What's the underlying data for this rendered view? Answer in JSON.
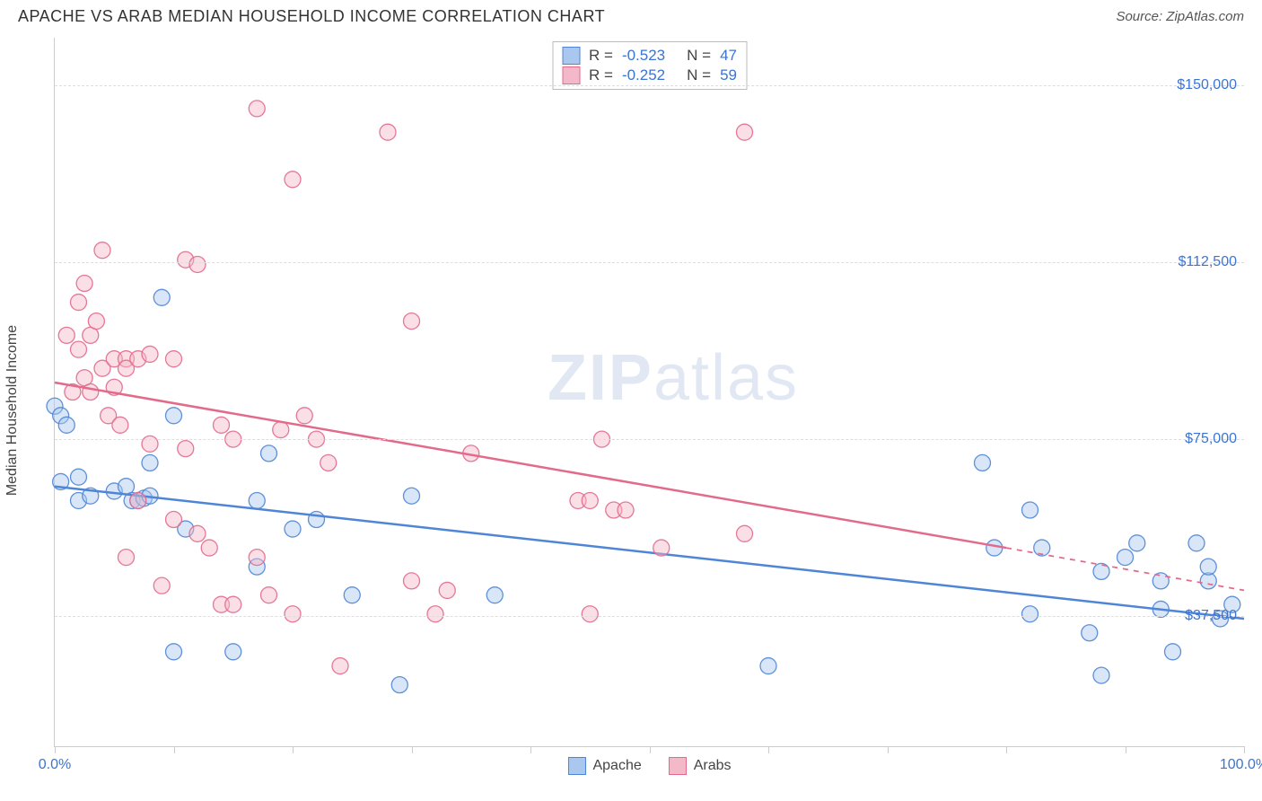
{
  "header": {
    "title": "APACHE VS ARAB MEDIAN HOUSEHOLD INCOME CORRELATION CHART",
    "source": "Source: ZipAtlas.com"
  },
  "watermark": {
    "zip": "ZIP",
    "atlas": "atlas"
  },
  "chart": {
    "type": "scatter",
    "background_color": "#ffffff",
    "grid_color": "#dddddd",
    "axis_color": "#cccccc",
    "label_color": "#444444",
    "value_color": "#3b74d4",
    "ylabel": "Median Household Income",
    "ylabel_fontsize": 16,
    "xlim": [
      0,
      100
    ],
    "ylim": [
      10000,
      160000
    ],
    "yticks": [
      {
        "v": 37500,
        "label": "$37,500"
      },
      {
        "v": 75000,
        "label": "$75,000"
      },
      {
        "v": 112500,
        "label": "$112,500"
      },
      {
        "v": 150000,
        "label": "$150,000"
      }
    ],
    "xticks": [
      0,
      10,
      20,
      30,
      40,
      50,
      60,
      70,
      80,
      90,
      100
    ],
    "xtick_labels": {
      "0": "0.0%",
      "100": "100.0%"
    },
    "marker_radius": 9,
    "marker_opacity": 0.45,
    "marker_stroke_opacity": 0.9,
    "line_width": 2.5,
    "stats_box": {
      "rows": [
        {
          "swatch_fill": "#a9c7ef",
          "swatch_border": "#4f85d6",
          "r": "-0.523",
          "n": "47"
        },
        {
          "swatch_fill": "#f4b9c8",
          "swatch_border": "#e26a8b",
          "r": "-0.252",
          "n": "59"
        }
      ],
      "r_label": "R =",
      "n_label": "N ="
    },
    "legend": [
      {
        "swatch_fill": "#a9c7ef",
        "swatch_border": "#4f85d6",
        "label": "Apache"
      },
      {
        "swatch_fill": "#f4b9c8",
        "swatch_border": "#e26a8b",
        "label": "Arabs"
      }
    ],
    "series": [
      {
        "name": "Apache",
        "fill": "#a9c7ef",
        "stroke": "#4f85d6",
        "regression": {
          "x1": 0,
          "y1": 65000,
          "x2": 100,
          "y2": 37000,
          "dash": false
        },
        "points": [
          [
            0,
            82000
          ],
          [
            0.5,
            80000
          ],
          [
            0.5,
            66000
          ],
          [
            1,
            78000
          ],
          [
            2,
            67000
          ],
          [
            2,
            62000
          ],
          [
            3,
            63000
          ],
          [
            5,
            64000
          ],
          [
            6,
            65000
          ],
          [
            6.5,
            62000
          ],
          [
            7,
            62000
          ],
          [
            7.5,
            62500
          ],
          [
            8,
            63000
          ],
          [
            8,
            70000
          ],
          [
            9,
            105000
          ],
          [
            10,
            80000
          ],
          [
            10,
            30000
          ],
          [
            11,
            56000
          ],
          [
            15,
            30000
          ],
          [
            17,
            48000
          ],
          [
            17,
            62000
          ],
          [
            18,
            72000
          ],
          [
            20,
            56000
          ],
          [
            22,
            58000
          ],
          [
            25,
            42000
          ],
          [
            29,
            23000
          ],
          [
            30,
            63000
          ],
          [
            37,
            42000
          ],
          [
            60,
            27000
          ],
          [
            78,
            70000
          ],
          [
            79,
            52000
          ],
          [
            82,
            38000
          ],
          [
            83,
            52000
          ],
          [
            82,
            60000
          ],
          [
            87,
            34000
          ],
          [
            88,
            47000
          ],
          [
            88,
            25000
          ],
          [
            90,
            50000
          ],
          [
            91,
            53000
          ],
          [
            93,
            45000
          ],
          [
            93,
            39000
          ],
          [
            94,
            30000
          ],
          [
            96,
            53000
          ],
          [
            97,
            45000
          ],
          [
            97,
            48000
          ],
          [
            98,
            37000
          ],
          [
            99,
            40000
          ]
        ]
      },
      {
        "name": "Arabs",
        "fill": "#f4b9c8",
        "stroke": "#e26a8b",
        "regression": {
          "x1": 0,
          "y1": 87000,
          "x2": 80,
          "y2": 52000,
          "dash": false,
          "extend": {
            "x1": 80,
            "y1": 52000,
            "x2": 100,
            "y2": 43000
          }
        },
        "points": [
          [
            1,
            97000
          ],
          [
            1.5,
            85000
          ],
          [
            2,
            104000
          ],
          [
            2,
            94000
          ],
          [
            2.5,
            88000
          ],
          [
            2.5,
            108000
          ],
          [
            3,
            85000
          ],
          [
            3,
            97000
          ],
          [
            3.5,
            100000
          ],
          [
            4,
            115000
          ],
          [
            4,
            90000
          ],
          [
            4.5,
            80000
          ],
          [
            5,
            86000
          ],
          [
            5,
            92000
          ],
          [
            5.5,
            78000
          ],
          [
            6,
            92000
          ],
          [
            6,
            50000
          ],
          [
            6,
            90000
          ],
          [
            7,
            92000
          ],
          [
            7,
            62000
          ],
          [
            8,
            74000
          ],
          [
            8,
            93000
          ],
          [
            9,
            44000
          ],
          [
            10,
            92000
          ],
          [
            10,
            58000
          ],
          [
            11,
            113000
          ],
          [
            11,
            73000
          ],
          [
            12,
            112000
          ],
          [
            12,
            55000
          ],
          [
            13,
            52000
          ],
          [
            14,
            78000
          ],
          [
            14,
            40000
          ],
          [
            15,
            75000
          ],
          [
            15,
            40000
          ],
          [
            17,
            145000
          ],
          [
            17,
            50000
          ],
          [
            18,
            42000
          ],
          [
            19,
            77000
          ],
          [
            20,
            130000
          ],
          [
            20,
            38000
          ],
          [
            21,
            80000
          ],
          [
            22,
            75000
          ],
          [
            23,
            70000
          ],
          [
            24,
            27000
          ],
          [
            28,
            140000
          ],
          [
            30,
            45000
          ],
          [
            30,
            100000
          ],
          [
            32,
            38000
          ],
          [
            33,
            43000
          ],
          [
            35,
            72000
          ],
          [
            44,
            62000
          ],
          [
            45,
            62000
          ],
          [
            45,
            38000
          ],
          [
            46,
            75000
          ],
          [
            47,
            60000
          ],
          [
            48,
            60000
          ],
          [
            51,
            52000
          ],
          [
            58,
            140000
          ],
          [
            58,
            55000
          ]
        ]
      }
    ]
  }
}
